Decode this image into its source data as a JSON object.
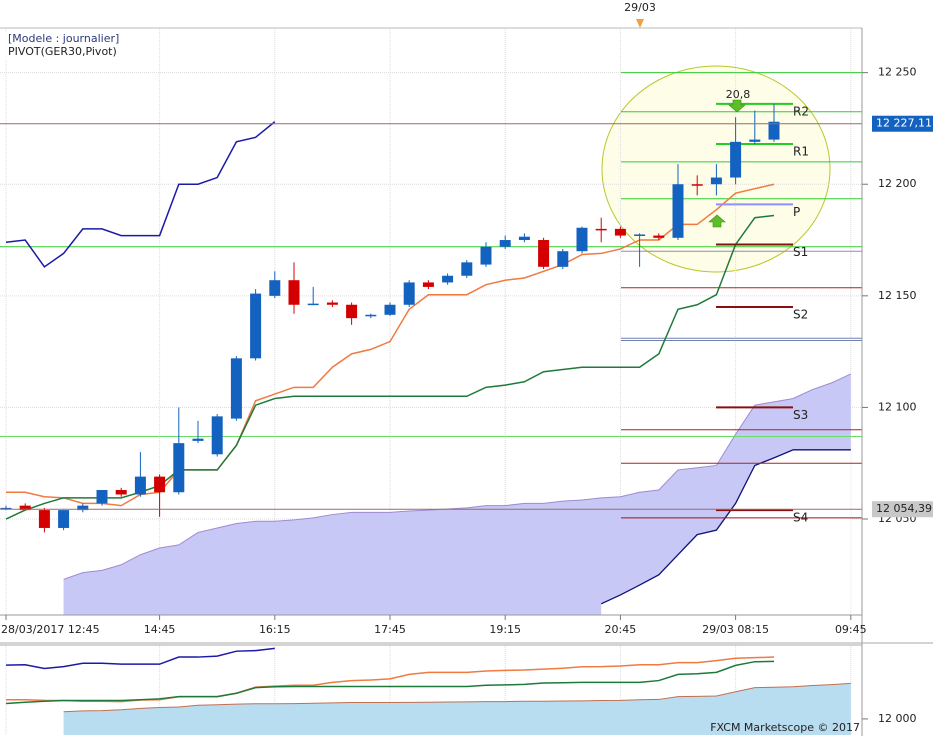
{
  "chart_data": {
    "type": "candlestick",
    "model_label": "[Modele : journalier]",
    "indicator_label": "PIVOT(GER30,Pivot)",
    "day_marker": "29/03",
    "footer": "FXCM Marketscope © 2017",
    "categories": [
      "28/03/2017 12:45",
      null,
      null,
      null,
      null,
      null,
      null,
      null,
      "14:45",
      null,
      null,
      null,
      null,
      null,
      "16:15",
      null,
      null,
      null,
      null,
      null,
      "17:45",
      null,
      null,
      null,
      null,
      null,
      "19:15",
      null,
      null,
      null,
      null,
      null,
      "20:45",
      null,
      null,
      null,
      null,
      null,
      "29/03 08:15",
      null,
      null,
      null,
      null,
      null,
      "09:45"
    ],
    "open": [
      12054.5,
      12056,
      12054,
      12046,
      12054,
      12057,
      12063,
      12061,
      12069,
      12062,
      12085,
      12079,
      12095,
      12122,
      12150,
      12157,
      12146,
      12147,
      12146,
      12141,
      12141.5,
      12146,
      12156,
      12156,
      12159,
      12164,
      12172,
      12175,
      12175,
      12163,
      12170,
      12180,
      12180,
      12177,
      12177,
      12176,
      12200,
      12200,
      12203,
      12219,
      12220,
      null,
      null,
      null,
      null
    ],
    "high": [
      12056,
      12057,
      12055,
      12054,
      12057,
      12063,
      12064,
      12080,
      12070,
      12100,
      12094,
      12097,
      12123,
      12153,
      12161,
      12165,
      12154,
      12148,
      12147,
      12142,
      12147,
      12157,
      12157,
      12160,
      12166,
      12174,
      12177,
      12178,
      12176,
      12171,
      12181,
      12185,
      12181,
      12178,
      12178,
      12209,
      12204,
      12209,
      12230,
      12233,
      12236,
      null,
      null,
      null,
      null
    ],
    "low": [
      12054,
      12054,
      12044,
      12045,
      12053,
      12056,
      12060,
      12060,
      12051,
      12061,
      12084,
      12078,
      12094,
      12121,
      12149,
      12142,
      12146,
      12145,
      12137,
      12140,
      12141,
      12145,
      12153,
      12155,
      12158,
      12163,
      12171,
      12174,
      12162,
      12162,
      12169,
      12174,
      12176,
      12163,
      12175,
      12175,
      12195,
      12195,
      12200,
      12218,
      12219,
      null,
      null,
      null,
      null
    ],
    "close": [
      12055,
      12054,
      12046,
      12054,
      12056,
      12063,
      12061,
      12069,
      12062,
      12084,
      12086,
      12096,
      12122,
      12151,
      12157,
      12146,
      12146.5,
      12146,
      12140,
      12141.5,
      12146,
      12156,
      12154,
      12159,
      12165,
      12172,
      12175,
      12176.5,
      12163,
      12170,
      12180.5,
      12179.5,
      12177,
      12177.5,
      12176,
      12200,
      12199.5,
      12203,
      12219,
      12220,
      12228,
      null,
      null,
      null,
      null
    ],
    "up_color": "#1462c0",
    "down_color": "#d40000",
    "lines": [
      {
        "color": "#1a1aa8",
        "values": [
          12174,
          12175,
          12163,
          12169,
          12180,
          12180,
          12177,
          12177,
          12177,
          12200,
          12200,
          12203,
          12219,
          12221,
          12228,
          null,
          null,
          null,
          null,
          null,
          null,
          null,
          null,
          null,
          null,
          null,
          null,
          null,
          null,
          null,
          null,
          null,
          null,
          null,
          null,
          null,
          null,
          null,
          null,
          null,
          null,
          null,
          null,
          null,
          null
        ]
      },
      {
        "color": "#f07a40",
        "values": [
          12062,
          12062,
          12060,
          12059.5,
          12057,
          12057,
          12056,
          12061,
          12062,
          12072,
          12072,
          12072,
          12083,
          12103,
          12106,
          12109,
          12109,
          12118,
          12124,
          12126,
          12129.5,
          12144,
          12150.5,
          12150.5,
          12150.5,
          12155,
          12157,
          12158,
          12161,
          12164,
          12168.5,
          12169,
          12171,
          12175,
          12175,
          12182,
          12182,
          12188.6,
          12196,
          12198,
          12200,
          null,
          null,
          null,
          null
        ]
      },
      {
        "color": "#1e7a3a",
        "values": [
          12050,
          12054,
          12057,
          12059.5,
          12059.5,
          12059.5,
          12059.5,
          12062,
          12065,
          12072,
          12072,
          12072,
          12083,
          12101,
          12104,
          12105,
          12105,
          12105,
          12105,
          12105,
          12105,
          12105,
          12105,
          12105,
          12105,
          12109,
          12110,
          12111.5,
          12116,
          12117,
          12118,
          12118,
          12118,
          12118,
          12124,
          12144,
          12146,
          12150.5,
          12173,
          12185,
          12186,
          null,
          null,
          null,
          null
        ]
      }
    ],
    "cloud": {
      "fill": "#c8c8f6",
      "upper_color": "#a08ad0",
      "lower_color": "#10107a",
      "upper": [
        null,
        null,
        null,
        12023,
        12026,
        12027,
        12029.5,
        12034,
        12037,
        12038.4,
        12044,
        12046,
        12048,
        12049,
        12049,
        12049.6,
        12050.5,
        12052,
        12053,
        12053,
        12053,
        12053.6,
        12054,
        12054.5,
        12055,
        12056,
        12056,
        12057,
        12057,
        12058,
        12058.5,
        12059.5,
        12060,
        12062,
        12063,
        12072,
        12073,
        12074,
        12088,
        12101,
        12102.5,
        12104,
        12108,
        12111,
        12115
      ],
      "lower": [
        null,
        null,
        null,
        null,
        null,
        null,
        null,
        null,
        null,
        null,
        null,
        null,
        null,
        null,
        null,
        null,
        null,
        null,
        null,
        null,
        null,
        null,
        null,
        null,
        null,
        null,
        null,
        null,
        null,
        null,
        null,
        12012,
        12016,
        12020.4,
        12025,
        12034,
        12043,
        12045,
        12057,
        12074,
        12077.4,
        12081,
        12081,
        12081,
        12081
      ]
    },
    "wide_lines": [
      {
        "value": 12172,
        "color": "#33cc33"
      },
      {
        "value": 12087,
        "color": "#66dd66"
      }
    ],
    "right_lines": [
      {
        "value": 12250,
        "color": "#33cc33"
      },
      {
        "value": 12232.5,
        "color": "#33cc33"
      },
      {
        "value": 12210,
        "color": "#33cc33"
      },
      {
        "value": 12193.5,
        "color": "#33cc33"
      },
      {
        "value": 12170,
        "color": "#9a88b8"
      },
      {
        "value": 12153.6,
        "color": "#b02020"
      },
      {
        "value": 12131,
        "color": "#7080b0"
      },
      {
        "value": 12130,
        "color": "#7080b0"
      },
      {
        "value": 12090,
        "color": "#b02020"
      },
      {
        "value": 12075,
        "color": "#b02020"
      },
      {
        "value": 12050.5,
        "color": "#a01010"
      }
    ],
    "pivots": [
      {
        "label": "R2",
        "value": 12236,
        "color": "#22cc22"
      },
      {
        "label": "R1",
        "value": 12218,
        "color": "#22cc22"
      },
      {
        "label": "P",
        "value": 12191,
        "color": "#9090ff"
      },
      {
        "label": "S1",
        "value": 12173,
        "color": "#8a1010"
      },
      {
        "label": "S2",
        "value": 12145,
        "color": "#8a1010"
      },
      {
        "label": "S3",
        "value": 12100,
        "color": "#8a1010"
      },
      {
        "label": "S4",
        "value": 12054,
        "color": "#8a1010"
      }
    ],
    "annotation": "20,8",
    "price_markers": [
      {
        "value": 12227.11,
        "label": "12 227,11",
        "fill": "#1462c0",
        "text_color": "#ffffff"
      },
      {
        "value": 12054.39,
        "label": "12 054,39",
        "fill": "#c8c8c8",
        "text_color": "#222222"
      }
    ],
    "ylim": [
      12007,
      12270
    ],
    "yticks": [
      {
        "value": 12050,
        "label": "12 050"
      },
      {
        "value": 12100,
        "label": "12 100"
      },
      {
        "value": 12150,
        "label": "12 150"
      },
      {
        "value": 12200,
        "label": "12 200"
      },
      {
        "value": 12250,
        "label": "12 250"
      }
    ],
    "grid": true,
    "overview": {
      "ylim": [
        11948,
        12239
      ],
      "yticks": [
        {
          "value": 12000,
          "label": "12 000"
        }
      ],
      "cloud_fill": "#b8dcf0",
      "cloud_line": "#c07050"
    }
  }
}
